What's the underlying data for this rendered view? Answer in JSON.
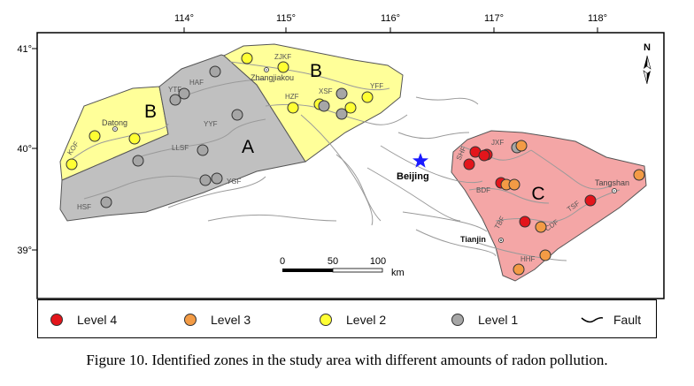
{
  "caption": "Figure 10. Identified zones in the study area with different amounts of radon pollution.",
  "colors": {
    "level4": "#e3151b",
    "level3": "#f39b45",
    "level2": "#ffff33",
    "level1": "#a6a6a6",
    "zone_a": "#c0c0c0",
    "zone_b": "#ffff99",
    "zone_c": "#f4a6a6",
    "fault": "#9a9a9a"
  },
  "top_ticks": [
    "114°",
    "115°",
    "116°",
    "117°",
    "118°"
  ],
  "left_ticks": [
    "41°",
    "40°",
    "39°"
  ],
  "zones": {
    "a": "A",
    "b_left": "B",
    "b_right": "B",
    "c": "C"
  },
  "cities": {
    "datong": "Datong",
    "zhangjiakou": "Zhangjiakou",
    "beijing": "Beijing",
    "tianjin": "Tianjin",
    "tangshan": "Tangshan"
  },
  "faults": [
    "ZJKF",
    "HAF",
    "YTF",
    "YYF",
    "LLSF",
    "YGF",
    "HSF",
    "KOF",
    "HZF",
    "XSF",
    "YFF",
    "SHF",
    "JXF",
    "BDF",
    "TBF",
    "CDF",
    "TSF",
    "HHF"
  ],
  "scale": {
    "ticks": [
      "0",
      "50",
      "100"
    ],
    "unit": "km"
  },
  "north": "N",
  "legend": [
    {
      "label": "Level 4",
      "color": "#e3151b"
    },
    {
      "label": "Level 3",
      "color": "#f39b45"
    },
    {
      "label": "Level 2",
      "color": "#ffff33"
    },
    {
      "label": "Level 1",
      "color": "#a6a6a6"
    }
  ],
  "legend_fault": "Fault"
}
